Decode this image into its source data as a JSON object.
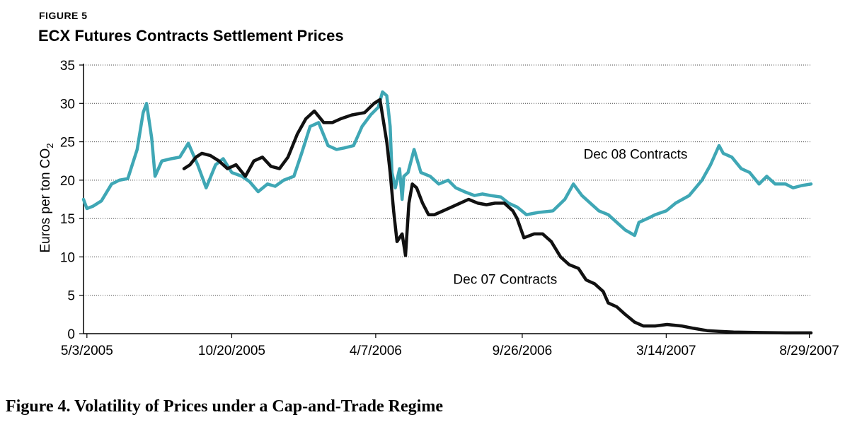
{
  "figure_label": "FIGURE 5",
  "caption": "Figure 4. Volatility of Prices under a Cap-and-Trade Regime",
  "chart_data": {
    "type": "line",
    "title": "ECX Futures Contracts Settlement Prices",
    "xlabel": "",
    "ylabel": "Euros per ton CO",
    "ylabel_subscript": "2",
    "x_tick_labels": [
      "5/3/2005",
      "10/20/2005",
      "4/7/2006",
      "9/26/2006",
      "3/14/2007",
      "8/29/2007"
    ],
    "x_ticks": [
      "2005-05-03",
      "2005-10-20",
      "2006-04-07",
      "2006-09-26",
      "2007-03-14",
      "2007-08-29"
    ],
    "xlim": [
      "2005-04-29",
      "2007-08-31"
    ],
    "y_ticks": [
      0,
      5,
      10,
      15,
      20,
      25,
      30,
      35
    ],
    "ylim": [
      0,
      35
    ],
    "grid": "horizontal-dotted",
    "series": [
      {
        "name": "Dec 08 Contracts",
        "color": "#3fa7b5",
        "points": [
          [
            "2005-04-29",
            17.5
          ],
          [
            "2005-05-03",
            16.3
          ],
          [
            "2005-05-10",
            16.6
          ],
          [
            "2005-05-20",
            17.3
          ],
          [
            "2005-06-01",
            19.5
          ],
          [
            "2005-06-10",
            20.0
          ],
          [
            "2005-06-20",
            20.2
          ],
          [
            "2005-07-01",
            24.0
          ],
          [
            "2005-07-08",
            28.8
          ],
          [
            "2005-07-12",
            30.0
          ],
          [
            "2005-07-18",
            25.5
          ],
          [
            "2005-07-22",
            20.5
          ],
          [
            "2005-07-30",
            22.5
          ],
          [
            "2005-08-10",
            22.8
          ],
          [
            "2005-08-20",
            23.0
          ],
          [
            "2005-08-30",
            24.8
          ],
          [
            "2005-09-10",
            22.0
          ],
          [
            "2005-09-20",
            19.0
          ],
          [
            "2005-10-01",
            22.0
          ],
          [
            "2005-10-10",
            22.8
          ],
          [
            "2005-10-20",
            21.0
          ],
          [
            "2005-11-01",
            20.5
          ],
          [
            "2005-11-10",
            19.8
          ],
          [
            "2005-11-20",
            18.5
          ],
          [
            "2005-12-01",
            19.5
          ],
          [
            "2005-12-10",
            19.2
          ],
          [
            "2005-12-20",
            20.0
          ],
          [
            "2006-01-01",
            20.5
          ],
          [
            "2006-01-10",
            23.5
          ],
          [
            "2006-01-20",
            27.0
          ],
          [
            "2006-01-30",
            27.5
          ],
          [
            "2006-02-10",
            24.5
          ],
          [
            "2006-02-20",
            24.0
          ],
          [
            "2006-03-01",
            24.2
          ],
          [
            "2006-03-12",
            24.5
          ],
          [
            "2006-03-22",
            27.0
          ],
          [
            "2006-04-01",
            28.5
          ],
          [
            "2006-04-10",
            29.5
          ],
          [
            "2006-04-15",
            31.5
          ],
          [
            "2006-04-20",
            31.0
          ],
          [
            "2006-04-24",
            27.0
          ],
          [
            "2006-04-26",
            21.0
          ],
          [
            "2006-04-30",
            19.0
          ],
          [
            "2006-05-05",
            21.5
          ],
          [
            "2006-05-08",
            17.5
          ],
          [
            "2006-05-10",
            20.5
          ],
          [
            "2006-05-15",
            21.0
          ],
          [
            "2006-05-22",
            24.0
          ],
          [
            "2006-05-30",
            21.0
          ],
          [
            "2006-06-10",
            20.5
          ],
          [
            "2006-06-20",
            19.5
          ],
          [
            "2006-07-01",
            20.0
          ],
          [
            "2006-07-10",
            19.0
          ],
          [
            "2006-07-20",
            18.5
          ],
          [
            "2006-08-01",
            18.0
          ],
          [
            "2006-08-10",
            18.2
          ],
          [
            "2006-08-20",
            18.0
          ],
          [
            "2006-09-01",
            17.8
          ],
          [
            "2006-09-10",
            17.0
          ],
          [
            "2006-09-20",
            16.5
          ],
          [
            "2006-10-01",
            15.5
          ],
          [
            "2006-10-15",
            15.8
          ],
          [
            "2006-11-01",
            16.0
          ],
          [
            "2006-11-15",
            17.5
          ],
          [
            "2006-11-25",
            19.5
          ],
          [
            "2006-12-05",
            18.0
          ],
          [
            "2006-12-15",
            17.0
          ],
          [
            "2006-12-25",
            16.0
          ],
          [
            "2007-01-05",
            15.5
          ],
          [
            "2007-01-15",
            14.5
          ],
          [
            "2007-01-25",
            13.5
          ],
          [
            "2007-02-05",
            12.8
          ],
          [
            "2007-02-10",
            14.5
          ],
          [
            "2007-02-20",
            15.0
          ],
          [
            "2007-03-01",
            15.5
          ],
          [
            "2007-03-14",
            16.0
          ],
          [
            "2007-03-25",
            17.0
          ],
          [
            "2007-04-10",
            18.0
          ],
          [
            "2007-04-25",
            20.0
          ],
          [
            "2007-05-05",
            22.0
          ],
          [
            "2007-05-15",
            24.5
          ],
          [
            "2007-05-20",
            23.5
          ],
          [
            "2007-05-30",
            23.0
          ],
          [
            "2007-06-10",
            21.5
          ],
          [
            "2007-06-20",
            21.0
          ],
          [
            "2007-07-01",
            19.5
          ],
          [
            "2007-07-10",
            20.5
          ],
          [
            "2007-07-20",
            19.5
          ],
          [
            "2007-08-01",
            19.5
          ],
          [
            "2007-08-10",
            19.0
          ],
          [
            "2007-08-20",
            19.3
          ],
          [
            "2007-08-31",
            19.5
          ]
        ]
      },
      {
        "name": "Dec 07 Contracts",
        "color": "#111111",
        "points": [
          [
            "2005-08-25",
            21.5
          ],
          [
            "2005-09-01",
            22.0
          ],
          [
            "2005-09-08",
            23.0
          ],
          [
            "2005-09-15",
            23.5
          ],
          [
            "2005-09-25",
            23.2
          ],
          [
            "2005-10-05",
            22.5
          ],
          [
            "2005-10-15",
            21.5
          ],
          [
            "2005-10-25",
            22.0
          ],
          [
            "2005-11-05",
            20.5
          ],
          [
            "2005-11-15",
            22.5
          ],
          [
            "2005-11-25",
            23.0
          ],
          [
            "2005-12-05",
            21.8
          ],
          [
            "2005-12-15",
            21.5
          ],
          [
            "2005-12-25",
            23.0
          ],
          [
            "2006-01-05",
            26.0
          ],
          [
            "2006-01-15",
            28.0
          ],
          [
            "2006-01-25",
            29.0
          ],
          [
            "2006-02-05",
            27.5
          ],
          [
            "2006-02-15",
            27.5
          ],
          [
            "2006-02-25",
            28.0
          ],
          [
            "2006-03-10",
            28.5
          ],
          [
            "2006-03-25",
            28.8
          ],
          [
            "2006-04-05",
            30.0
          ],
          [
            "2006-04-12",
            30.5
          ],
          [
            "2006-04-20",
            25.0
          ],
          [
            "2006-04-24",
            21.0
          ],
          [
            "2006-04-28",
            16.0
          ],
          [
            "2006-05-02",
            12.0
          ],
          [
            "2006-05-08",
            13.0
          ],
          [
            "2006-05-12",
            10.2
          ],
          [
            "2006-05-16",
            17.0
          ],
          [
            "2006-05-20",
            19.5
          ],
          [
            "2006-05-25",
            19.0
          ],
          [
            "2006-06-01",
            17.0
          ],
          [
            "2006-06-08",
            15.5
          ],
          [
            "2006-06-15",
            15.5
          ],
          [
            "2006-06-25",
            16.0
          ],
          [
            "2006-07-05",
            16.5
          ],
          [
            "2006-07-15",
            17.0
          ],
          [
            "2006-07-25",
            17.5
          ],
          [
            "2006-08-05",
            17.0
          ],
          [
            "2006-08-15",
            16.8
          ],
          [
            "2006-08-25",
            17.0
          ],
          [
            "2006-09-05",
            17.0
          ],
          [
            "2006-09-15",
            16.0
          ],
          [
            "2006-09-20",
            15.0
          ],
          [
            "2006-09-28",
            12.5
          ],
          [
            "2006-10-10",
            13.0
          ],
          [
            "2006-10-20",
            13.0
          ],
          [
            "2006-10-30",
            12.0
          ],
          [
            "2006-11-10",
            10.0
          ],
          [
            "2006-11-20",
            9.0
          ],
          [
            "2006-12-01",
            8.5
          ],
          [
            "2006-12-10",
            7.0
          ],
          [
            "2006-12-20",
            6.5
          ],
          [
            "2006-12-30",
            5.5
          ],
          [
            "2007-01-05",
            4.0
          ],
          [
            "2007-01-15",
            3.5
          ],
          [
            "2007-01-25",
            2.5
          ],
          [
            "2007-02-05",
            1.5
          ],
          [
            "2007-02-15",
            1.0
          ],
          [
            "2007-03-01",
            1.0
          ],
          [
            "2007-03-15",
            1.2
          ],
          [
            "2007-04-01",
            1.0
          ],
          [
            "2007-04-15",
            0.7
          ],
          [
            "2007-05-01",
            0.4
          ],
          [
            "2007-05-15",
            0.3
          ],
          [
            "2007-06-01",
            0.2
          ],
          [
            "2007-07-01",
            0.15
          ],
          [
            "2007-08-01",
            0.1
          ],
          [
            "2007-08-31",
            0.1
          ]
        ]
      }
    ],
    "annotations": [
      {
        "text": "Dec 08 Contracts",
        "date": "2006-12-07",
        "value": 22.8
      },
      {
        "text": "Dec 07 Contracts",
        "date": "2006-07-07",
        "value": 6.5
      }
    ]
  }
}
